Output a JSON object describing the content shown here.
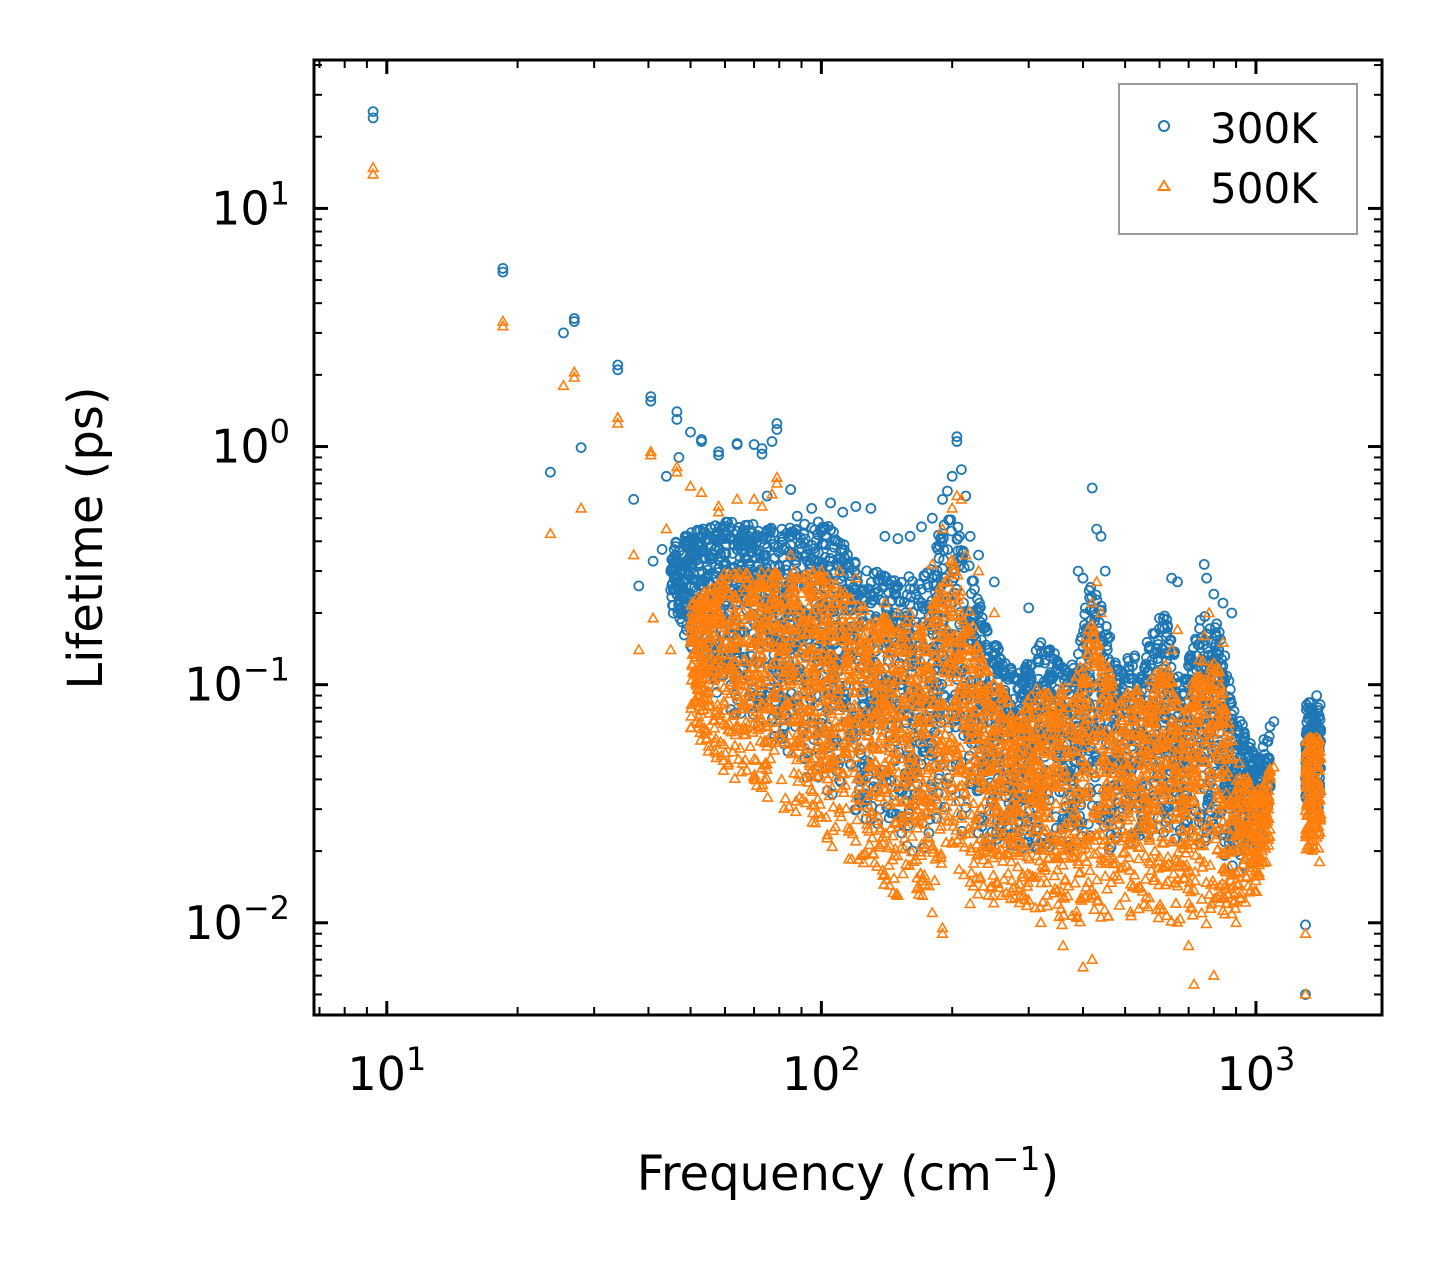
{
  "chart_data": {
    "type": "scatter",
    "title": "",
    "xlabel": "Frequency (cm",
    "xlabel_sup": "−1",
    "xlabel_end": ")",
    "ylabel": "Lifetime (ps)",
    "xscale": "log",
    "yscale": "log",
    "xlim": [
      6.8,
      1950
    ],
    "ylim": [
      0.0041,
      42
    ],
    "legend_position": "top-right",
    "x_ticks": [
      {
        "value": 10,
        "base": "10",
        "exp": "1"
      },
      {
        "value": 100,
        "base": "10",
        "exp": "2"
      },
      {
        "value": 1000,
        "base": "10",
        "exp": "3"
      }
    ],
    "y_ticks": [
      {
        "value": 0.01,
        "base": "10",
        "exp": "−2"
      },
      {
        "value": 0.1,
        "base": "10",
        "exp": "−1"
      },
      {
        "value": 1,
        "base": "10",
        "exp": "0"
      },
      {
        "value": 10,
        "base": "10",
        "exp": "1"
      }
    ],
    "series": [
      {
        "name": "300K",
        "marker": "circle",
        "color": "#1f77b4",
        "points": [
          [
            9.3,
            25.5
          ],
          [
            9.3,
            24.0
          ],
          [
            18.5,
            5.6
          ],
          [
            18.5,
            5.4
          ],
          [
            25.5,
            3.0
          ],
          [
            27.0,
            3.45
          ],
          [
            27.0,
            3.35
          ],
          [
            23.8,
            0.78
          ],
          [
            28.0,
            0.99
          ],
          [
            34.0,
            2.2
          ],
          [
            34.0,
            2.1
          ],
          [
            40.5,
            1.62
          ],
          [
            40.5,
            1.55
          ],
          [
            46.5,
            1.4
          ],
          [
            46.5,
            1.3
          ],
          [
            50,
            1.15
          ],
          [
            53,
            1.07
          ],
          [
            53,
            1.05
          ],
          [
            58,
            0.95
          ],
          [
            58,
            0.92
          ],
          [
            64,
            1.03
          ],
          [
            64,
            1.02
          ],
          [
            70,
            1.02
          ],
          [
            73,
            0.93
          ],
          [
            73,
            0.98
          ],
          [
            77,
            1.05
          ],
          [
            79,
            1.25
          ],
          [
            79,
            1.18
          ],
          [
            37,
            0.6
          ],
          [
            44,
            0.75
          ],
          [
            47,
            0.9
          ],
          [
            38,
            0.26
          ],
          [
            45,
            0.25
          ],
          [
            41,
            0.33
          ],
          [
            43,
            0.37
          ],
          [
            48,
            0.35
          ],
          [
            55,
            0.1
          ],
          [
            57,
            0.105
          ],
          [
            75,
            0.62
          ],
          [
            85,
            0.66
          ],
          [
            88,
            0.51
          ],
          [
            95,
            0.55
          ],
          [
            105,
            0.58
          ],
          [
            112,
            0.53
          ],
          [
            120,
            0.56
          ],
          [
            130,
            0.55
          ],
          [
            140,
            0.42
          ],
          [
            150,
            0.41
          ],
          [
            160,
            0.42
          ],
          [
            170,
            0.46
          ],
          [
            180,
            0.5
          ],
          [
            190,
            0.6
          ],
          [
            195,
            0.65
          ],
          [
            200,
            0.75
          ],
          [
            205,
            1.1
          ],
          [
            205,
            1.05
          ],
          [
            210,
            0.8
          ],
          [
            215,
            0.62
          ],
          [
            220,
            0.42
          ],
          [
            230,
            0.35
          ],
          [
            250,
            0.27
          ],
          [
            300,
            0.21
          ],
          [
            300,
            0.09
          ],
          [
            320,
            0.15
          ],
          [
            360,
            0.11
          ],
          [
            390,
            0.3
          ],
          [
            400,
            0.28
          ],
          [
            420,
            0.67
          ],
          [
            430,
            0.45
          ],
          [
            440,
            0.42
          ],
          [
            450,
            0.3
          ],
          [
            520,
            0.12
          ],
          [
            560,
            0.13
          ],
          [
            600,
            0.19
          ],
          [
            640,
            0.28
          ],
          [
            660,
            0.27
          ],
          [
            700,
            0.12
          ],
          [
            760,
            0.32
          ],
          [
            770,
            0.28
          ],
          [
            800,
            0.24
          ],
          [
            840,
            0.22
          ],
          [
            880,
            0.2
          ],
          [
            1100,
            0.07
          ],
          [
            1300,
            0.0098
          ],
          [
            1300,
            0.005
          ],
          [
            1380,
            0.09
          ],
          [
            1390,
            0.08
          ]
        ]
      },
      {
        "name": "500K",
        "marker": "triangle",
        "color": "#ff7f0e",
        "points": [
          [
            9.3,
            14.8
          ],
          [
            9.3,
            13.9
          ],
          [
            18.5,
            3.35
          ],
          [
            18.5,
            3.2
          ],
          [
            25.5,
            1.8
          ],
          [
            27.0,
            2.05
          ],
          [
            27.0,
            1.95
          ],
          [
            23.8,
            0.43
          ],
          [
            28.0,
            0.55
          ],
          [
            34.0,
            1.32
          ],
          [
            34.0,
            1.25
          ],
          [
            40.5,
            0.95
          ],
          [
            40.5,
            0.92
          ],
          [
            46.5,
            0.82
          ],
          [
            46.5,
            0.78
          ],
          [
            50,
            0.68
          ],
          [
            53,
            0.64
          ],
          [
            58,
            0.56
          ],
          [
            58,
            0.53
          ],
          [
            64,
            0.6
          ],
          [
            70,
            0.6
          ],
          [
            73,
            0.56
          ],
          [
            77,
            0.63
          ],
          [
            79,
            0.74
          ],
          [
            79,
            0.7
          ],
          [
            37,
            0.35
          ],
          [
            44,
            0.45
          ],
          [
            38,
            0.14
          ],
          [
            41,
            0.19
          ],
          [
            45,
            0.14
          ],
          [
            55,
            0.055
          ],
          [
            57,
            0.057
          ],
          [
            65,
            0.054
          ],
          [
            75,
            0.055
          ],
          [
            80,
            0.06
          ],
          [
            90,
            0.055
          ],
          [
            95,
            0.065
          ],
          [
            85,
            0.35
          ],
          [
            100,
            0.3
          ],
          [
            110,
            0.3
          ],
          [
            120,
            0.28
          ],
          [
            140,
            0.22
          ],
          [
            150,
            0.2
          ],
          [
            160,
            0.2
          ],
          [
            180,
            0.32
          ],
          [
            190,
            0.45
          ],
          [
            200,
            0.55
          ],
          [
            205,
            0.62
          ],
          [
            210,
            0.6
          ],
          [
            215,
            0.35
          ],
          [
            230,
            0.3
          ],
          [
            250,
            0.2
          ],
          [
            110,
            0.029
          ],
          [
            115,
            0.025
          ],
          [
            120,
            0.022
          ],
          [
            140,
            0.016
          ],
          [
            150,
            0.013
          ],
          [
            180,
            0.011
          ],
          [
            190,
            0.0095
          ],
          [
            190,
            0.009
          ],
          [
            220,
            0.012
          ],
          [
            260,
            0.013
          ],
          [
            320,
            0.01
          ],
          [
            360,
            0.008
          ],
          [
            400,
            0.0065
          ],
          [
            420,
            0.007
          ],
          [
            440,
            0.2
          ],
          [
            430,
            0.27
          ],
          [
            420,
            0.22
          ],
          [
            560,
            0.05
          ],
          [
            600,
            0.1
          ],
          [
            640,
            0.14
          ],
          [
            660,
            0.17
          ],
          [
            700,
            0.008
          ],
          [
            720,
            0.0055
          ],
          [
            760,
            0.16
          ],
          [
            780,
            0.2
          ],
          [
            800,
            0.006
          ],
          [
            840,
            0.15
          ],
          [
            900,
            0.01
          ],
          [
            1000,
            0.02
          ],
          [
            1100,
            0.045
          ],
          [
            1300,
            0.009
          ],
          [
            1300,
            0.005
          ],
          [
            1380,
            0.06
          ],
          [
            1400,
            0.018
          ]
        ]
      }
    ]
  }
}
